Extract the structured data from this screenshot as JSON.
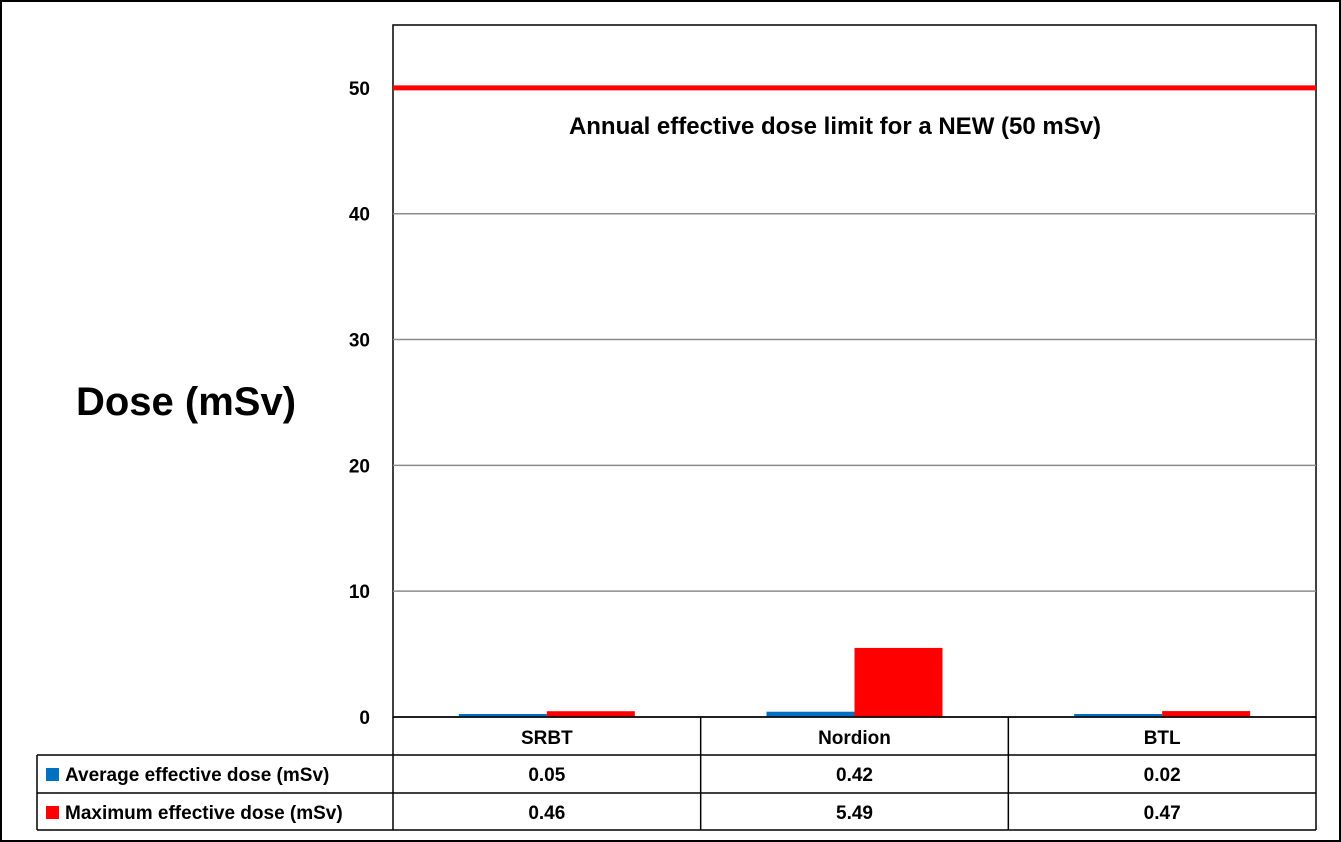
{
  "chart_data": {
    "type": "bar",
    "categories": [
      "SRBT",
      "Nordion",
      "BTL"
    ],
    "series": [
      {
        "name": "Average effective dose (mSv)",
        "values": [
          0.05,
          0.42,
          0.02
        ],
        "color": "#0070C0"
      },
      {
        "name": "Maximum effective dose (mSv)",
        "values": [
          0.46,
          5.49,
          0.47
        ],
        "color": "#FF0000"
      }
    ],
    "table_values": [
      [
        "0.05",
        "0.42",
        "0.02"
      ],
      [
        "0.46",
        "5.49",
        "0.47"
      ]
    ],
    "ylabel": "Dose (mSv)",
    "ylim": [
      0,
      55
    ],
    "yticks": [
      0,
      10,
      20,
      30,
      40,
      50
    ],
    "grid": true,
    "legend": "data-table",
    "reference_line": {
      "value": 50,
      "label": "Annual effective dose limit for a NEW (50 mSv)",
      "color": "#FF0000"
    }
  }
}
